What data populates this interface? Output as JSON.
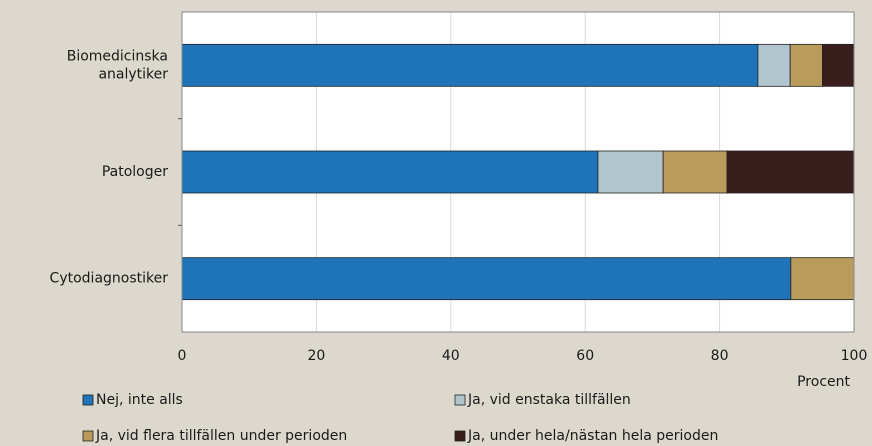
{
  "chart_data": {
    "type": "stacked-barh",
    "categories": [
      "Biomedicinska analytiker",
      "Patologer",
      "Cytodiagnostiker"
    ],
    "series": [
      {
        "name": "Nej, inte alls",
        "color": "#1f74b9",
        "values": [
          85.7,
          61.9,
          90.6
        ]
      },
      {
        "name": "Ja, vid enstaka tillfällen",
        "color": "#b1c5cf",
        "values": [
          4.8,
          9.7,
          0
        ]
      },
      {
        "name": "Ja, vid flera tillfällen under perioden",
        "color": "#b99b5c",
        "values": [
          4.8,
          9.5,
          9.4
        ]
      },
      {
        "name": "Ja, under hela/nästan hela perioden",
        "color": "#3a1d1d",
        "values": [
          4.7,
          18.9,
          0
        ]
      }
    ],
    "xlabel": "Procent",
    "xlim": [
      0,
      100
    ],
    "xticks": [
      0,
      20,
      40,
      60,
      80,
      100
    ],
    "grid": true
  }
}
